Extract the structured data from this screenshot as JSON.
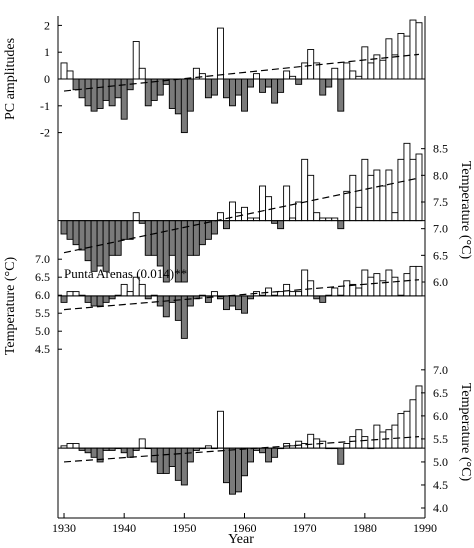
{
  "chart_data": [
    {
      "type": "bar",
      "panel": "PC amplitudes",
      "ylabel": "PC amplitudes",
      "ylabel_side": "left",
      "ylim": [
        -2.5,
        2.5
      ],
      "yticks": [
        -2,
        -1,
        0,
        1,
        2
      ],
      "baseline": 0,
      "trend": {
        "x": [
          1930,
          1989
        ],
        "y": [
          -0.45,
          0.92
        ]
      },
      "x": [
        1930,
        1931,
        1932,
        1933,
        1934,
        1935,
        1936,
        1937,
        1938,
        1939,
        1940,
        1941,
        1942,
        1943,
        1944,
        1945,
        1946,
        1947,
        1948,
        1949,
        1950,
        1951,
        1952,
        1953,
        1954,
        1955,
        1956,
        1957,
        1958,
        1959,
        1960,
        1961,
        1962,
        1963,
        1964,
        1965,
        1966,
        1967,
        1968,
        1969,
        1970,
        1971,
        1972,
        1973,
        1974,
        1975,
        1976,
        1977,
        1978,
        1979,
        1980,
        1981,
        1982,
        1983,
        1984,
        1985,
        1986,
        1987,
        1988,
        1989
      ],
      "values": [
        0.6,
        0.3,
        -0.4,
        -0.7,
        -1.0,
        -1.2,
        -1.1,
        -0.8,
        -1.0,
        -0.7,
        -1.5,
        -0.4,
        1.4,
        0.4,
        -1.0,
        -0.8,
        -0.6,
        -0.2,
        -1.1,
        -1.3,
        -2.0,
        -1.2,
        0.4,
        0.2,
        -0.7,
        -0.6,
        1.9,
        -0.7,
        -1.0,
        -0.6,
        -1.2,
        -0.3,
        0.2,
        -0.5,
        -0.3,
        -0.9,
        -0.5,
        0.3,
        0.1,
        -0.2,
        0.6,
        1.1,
        0.6,
        -0.6,
        -0.3,
        0.4,
        -1.2,
        0.6,
        0.3,
        0.1,
        1.2,
        0.6,
        0.9,
        0.7,
        1.5,
        0.9,
        1.7,
        1.6,
        2.2,
        2.1
      ]
    },
    {
      "type": "bar",
      "panel": "Temperature 1",
      "ylabel": "Temperature (°C)",
      "ylabel_side": "right",
      "ylim": [
        5.7,
        9.0
      ],
      "yticks": [
        6.0,
        6.5,
        7.0,
        7.5,
        8.0,
        8.5
      ],
      "baseline": 7.15,
      "trend": {
        "x": [
          1930,
          1989
        ],
        "y": [
          6.55,
          7.95
        ]
      },
      "x": [
        1930,
        1931,
        1932,
        1933,
        1934,
        1935,
        1936,
        1937,
        1938,
        1939,
        1940,
        1941,
        1942,
        1943,
        1944,
        1945,
        1946,
        1947,
        1948,
        1949,
        1950,
        1951,
        1952,
        1953,
        1954,
        1955,
        1956,
        1957,
        1958,
        1959,
        1960,
        1961,
        1962,
        1963,
        1964,
        1965,
        1966,
        1967,
        1968,
        1969,
        1970,
        1971,
        1972,
        1973,
        1974,
        1975,
        1976,
        1977,
        1978,
        1979,
        1980,
        1981,
        1982,
        1983,
        1984,
        1985,
        1986,
        1987,
        1988,
        1989
      ],
      "values": [
        6.9,
        6.8,
        6.7,
        6.6,
        6.4,
        6.2,
        6.3,
        6.2,
        6.5,
        6.5,
        6.8,
        6.8,
        7.3,
        7.1,
        6.5,
        6.5,
        6.3,
        6.0,
        6.5,
        6.0,
        6.0,
        6.5,
        6.5,
        6.7,
        6.8,
        6.9,
        7.3,
        7.0,
        7.5,
        7.3,
        7.4,
        7.2,
        7.2,
        7.8,
        7.6,
        7.1,
        7.0,
        7.8,
        7.2,
        7.5,
        8.3,
        8.0,
        7.3,
        7.2,
        7.2,
        7.2,
        7.0,
        7.7,
        8.0,
        7.4,
        8.3,
        8.0,
        8.1,
        7.8,
        8.1,
        7.3,
        8.3,
        8.6,
        8.3,
        8.4
      ]
    },
    {
      "type": "bar",
      "panel": "Punta Arenas",
      "title": "Punta Arenas (0.014)**",
      "ylabel": "Temperature (°C)",
      "ylabel_side": "left",
      "ylim": [
        4.2,
        7.2
      ],
      "yticks": [
        4.5,
        5.0,
        5.5,
        6.0,
        6.5,
        7.0
      ],
      "baseline": 5.98,
      "trend": {
        "x": [
          1930,
          1989
        ],
        "y": [
          5.6,
          6.43
        ]
      },
      "x": [
        1930,
        1931,
        1932,
        1933,
        1934,
        1935,
        1936,
        1937,
        1938,
        1939,
        1940,
        1941,
        1942,
        1943,
        1944,
        1945,
        1946,
        1947,
        1948,
        1949,
        1950,
        1951,
        1952,
        1953,
        1954,
        1955,
        1956,
        1957,
        1958,
        1959,
        1960,
        1961,
        1962,
        1963,
        1964,
        1965,
        1966,
        1967,
        1968,
        1969,
        1970,
        1971,
        1972,
        1973,
        1974,
        1975,
        1976,
        1977,
        1978,
        1979,
        1980,
        1981,
        1982,
        1983,
        1984,
        1985,
        1986,
        1987,
        1988,
        1989
      ],
      "values": [
        5.8,
        6.1,
        6.1,
        6.0,
        5.8,
        5.7,
        5.7,
        5.8,
        5.9,
        6.0,
        6.3,
        6.1,
        6.5,
        6.3,
        5.9,
        6.0,
        5.7,
        5.4,
        5.8,
        5.3,
        4.8,
        5.7,
        5.9,
        6.0,
        5.8,
        6.1,
        5.9,
        5.6,
        5.7,
        5.6,
        5.5,
        5.9,
        6.1,
        6.0,
        6.2,
        6.0,
        6.1,
        6.3,
        6.1,
        6.1,
        6.7,
        6.4,
        5.9,
        5.8,
        6.0,
        6.2,
        6.0,
        6.4,
        6.3,
        6.2,
        6.7,
        6.5,
        6.6,
        6.4,
        6.7,
        6.5,
        6.0,
        6.6,
        6.8,
        6.8
      ]
    },
    {
      "type": "bar",
      "panel": "Temperature 3",
      "ylabel": "Temperature (°C)",
      "ylabel_side": "right",
      "ylim": [
        4.0,
        7.3
      ],
      "yticks": [
        4.0,
        4.5,
        5.0,
        5.5,
        6.0,
        6.5,
        7.0
      ],
      "baseline": 5.3,
      "trend": {
        "x": [
          1930,
          1989
        ],
        "y": [
          5.0,
          5.55
        ]
      },
      "x": [
        1930,
        1931,
        1932,
        1933,
        1934,
        1935,
        1936,
        1937,
        1938,
        1939,
        1940,
        1941,
        1942,
        1943,
        1944,
        1945,
        1946,
        1947,
        1948,
        1949,
        1950,
        1951,
        1952,
        1953,
        1954,
        1955,
        1956,
        1957,
        1958,
        1959,
        1960,
        1961,
        1962,
        1963,
        1964,
        1965,
        1966,
        1967,
        1968,
        1969,
        1970,
        1971,
        1972,
        1973,
        1974,
        1975,
        1976,
        1977,
        1978,
        1979,
        1980,
        1981,
        1982,
        1983,
        1984,
        1985,
        1986,
        1987,
        1988,
        1989
      ],
      "values": [
        5.35,
        5.4,
        5.4,
        5.25,
        5.2,
        5.1,
        5.0,
        5.25,
        5.25,
        5.3,
        5.2,
        5.1,
        5.25,
        5.5,
        5.3,
        5.0,
        4.75,
        4.75,
        4.9,
        4.6,
        4.5,
        5.0,
        5.25,
        5.3,
        5.35,
        5.3,
        6.1,
        4.55,
        4.3,
        4.35,
        4.7,
        5.0,
        5.25,
        5.2,
        5.0,
        5.1,
        5.3,
        5.4,
        5.35,
        5.45,
        5.4,
        5.6,
        5.5,
        5.45,
        5.3,
        5.3,
        4.95,
        5.4,
        5.55,
        5.7,
        5.55,
        5.3,
        5.8,
        5.65,
        5.7,
        5.8,
        6.05,
        6.1,
        6.35,
        6.65
      ]
    }
  ],
  "xaxis": {
    "label": "Year",
    "xlim": [
      1929,
      1990
    ],
    "ticks": [
      "1930",
      "1940",
      "1950",
      "1960",
      "1970",
      "1980",
      "1990"
    ]
  },
  "style": {
    "negative_fill": "#7a7a7a",
    "positive_fill": "#ffffff",
    "stroke": "#000000"
  }
}
